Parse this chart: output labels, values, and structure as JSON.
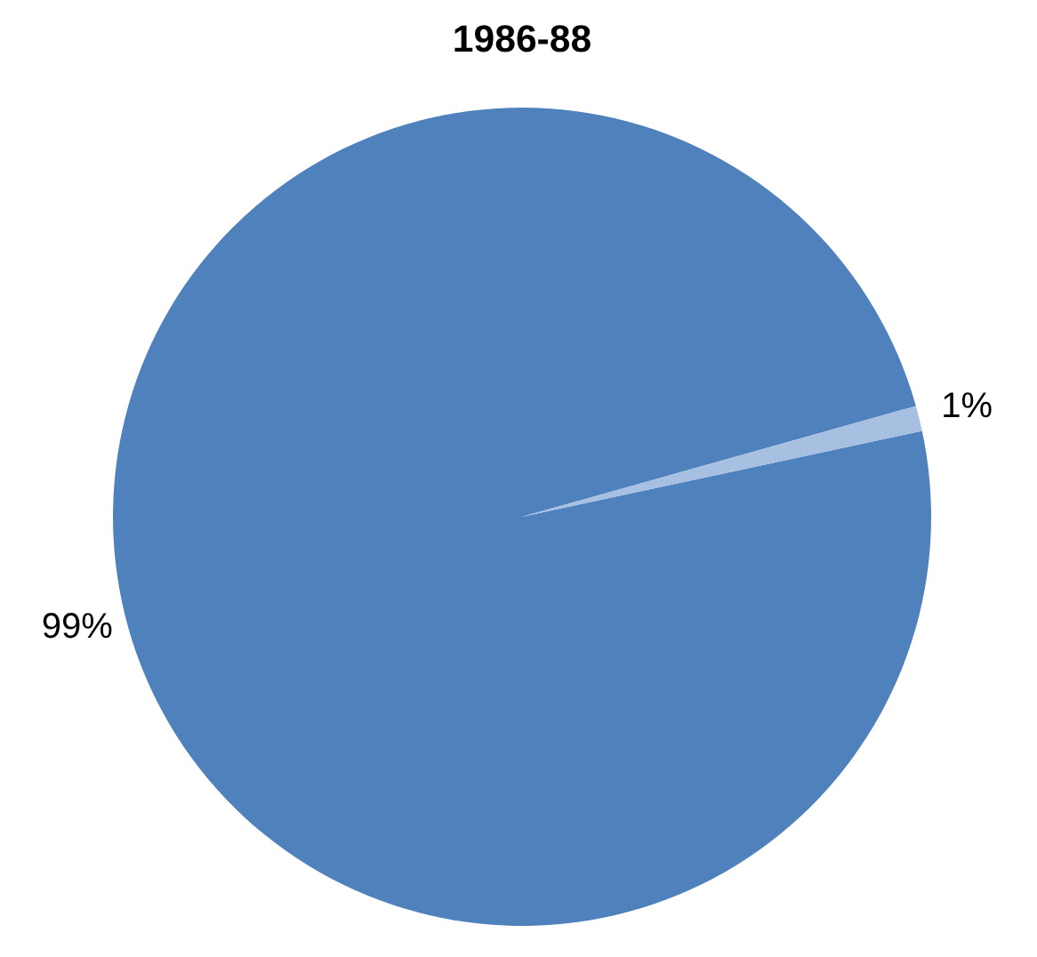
{
  "chart_data": {
    "type": "pie",
    "title": "1986-88",
    "categories": [
      null,
      null
    ],
    "values": [
      99,
      1
    ],
    "colors": [
      "#4f81bd",
      "#a7bfe0"
    ],
    "value_labels": [
      "99%",
      "1%"
    ]
  }
}
